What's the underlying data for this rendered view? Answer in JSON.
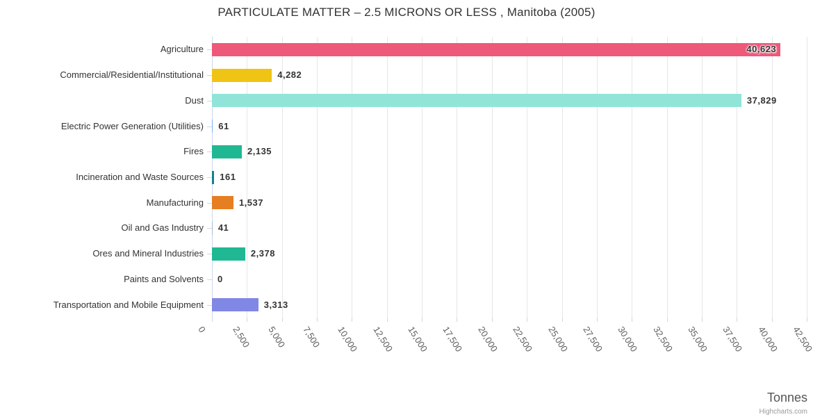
{
  "chart_data": {
    "type": "bar",
    "orientation": "horizontal",
    "title": "PARTICULATE MATTER – 2.5 MICRONS OR LESS , Manitoba (2005)",
    "categories": [
      "Agriculture",
      "Commercial/Residential/Institutional",
      "Dust",
      "Electric Power Generation (Utilities)",
      "Fires",
      "Incineration and Waste Sources",
      "Manufacturing",
      "Oil and Gas Industry",
      "Ores and Mineral Industries",
      "Paints and Solvents",
      "Transportation and Mobile Equipment"
    ],
    "values": [
      40623,
      4282,
      37829,
      61,
      2135,
      161,
      1537,
      41,
      2378,
      0,
      3313
    ],
    "value_labels": [
      "40,623",
      "4,282",
      "37,829",
      "61",
      "2,135",
      "161",
      "1,537",
      "41",
      "2,378",
      "0",
      "3,313"
    ],
    "bar_colors": [
      "#ee5879",
      "#efc414",
      "#90e5d8",
      "#7cb5ec",
      "#1fb893",
      "#15808d",
      "#e67e22",
      "#aabbcc",
      "#1fb893",
      "#cccccc",
      "#8087e4"
    ],
    "xlabel": "Tonnes",
    "xlim": [
      0,
      42500
    ],
    "tick_interval": 2500,
    "x_tick_labels": [
      "0",
      "2,500",
      "5,000",
      "7,500",
      "10,000",
      "12,500",
      "15,000",
      "17,500",
      "20,000",
      "22,500",
      "25,000",
      "27,500",
      "30,000",
      "32,500",
      "35,000",
      "37,500",
      "40,000",
      "42,500"
    ],
    "grid": "vertical",
    "legend": "none",
    "colors": {
      "grid_line": "#e6e6e6",
      "axis_line": "#ccd6eb",
      "label_text": "#333333",
      "tick_label_text": "#606060",
      "axis_title_text": "#555555",
      "credits_text": "#999999"
    },
    "credits": "Highcharts.com"
  }
}
